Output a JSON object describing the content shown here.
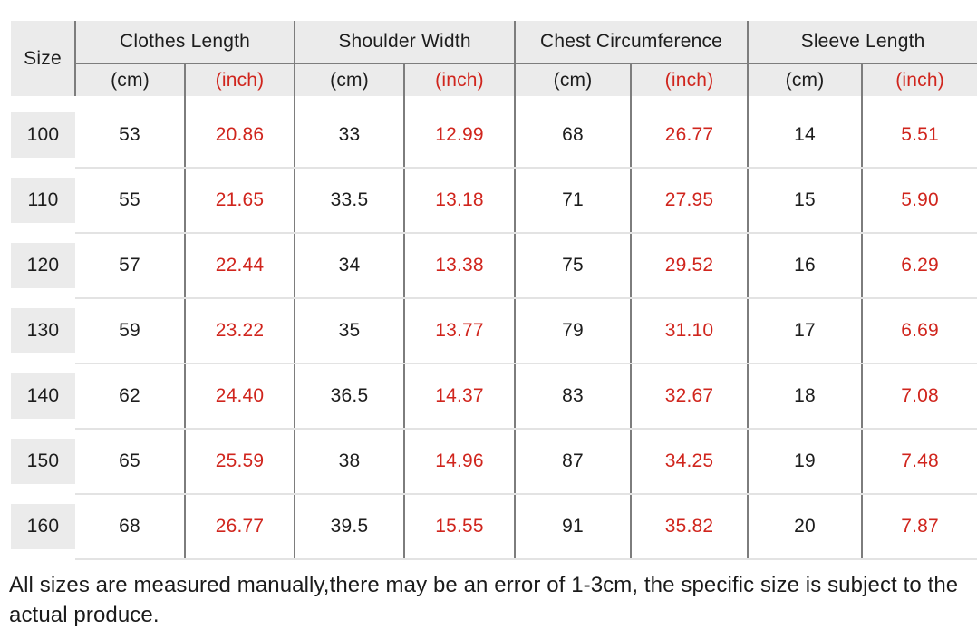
{
  "colors": {
    "red": "#d0251d",
    "header_bg": "#ebebeb",
    "dark_line": "#7d7d7d",
    "light_line": "#e3e3e3",
    "text": "#1d1d1d"
  },
  "table": {
    "size_header": "Size",
    "unit_cm_label": "(cm)",
    "unit_inch_label": "(inch)",
    "groups": [
      {
        "label": "Clothes Length"
      },
      {
        "label": "Shoulder Width"
      },
      {
        "label": "Chest Circumference"
      },
      {
        "label": "Sleeve Length"
      }
    ],
    "rows": [
      {
        "size": "100",
        "values": [
          "53",
          "20.86",
          "33",
          "12.99",
          "68",
          "26.77",
          "14",
          "5.51"
        ]
      },
      {
        "size": "110",
        "values": [
          "55",
          "21.65",
          "33.5",
          "13.18",
          "71",
          "27.95",
          "15",
          "5.90"
        ]
      },
      {
        "size": "120",
        "values": [
          "57",
          "22.44",
          "34",
          "13.38",
          "75",
          "29.52",
          "16",
          "6.29"
        ]
      },
      {
        "size": "130",
        "values": [
          "59",
          "23.22",
          "35",
          "13.77",
          "79",
          "31.10",
          "17",
          "6.69"
        ]
      },
      {
        "size": "140",
        "values": [
          "62",
          "24.40",
          "36.5",
          "14.37",
          "83",
          "32.67",
          "18",
          "7.08"
        ]
      },
      {
        "size": "150",
        "values": [
          "65",
          "25.59",
          "38",
          "14.96",
          "87",
          "34.25",
          "19",
          "7.48"
        ]
      },
      {
        "size": "160",
        "values": [
          "68",
          "26.77",
          "39.5",
          "15.55",
          "91",
          "35.82",
          "20",
          "7.87"
        ]
      }
    ]
  },
  "footer": {
    "note": "All sizes are measured manually,there may be an error of 1-3cm, the specific size is subject to the actual produce."
  }
}
